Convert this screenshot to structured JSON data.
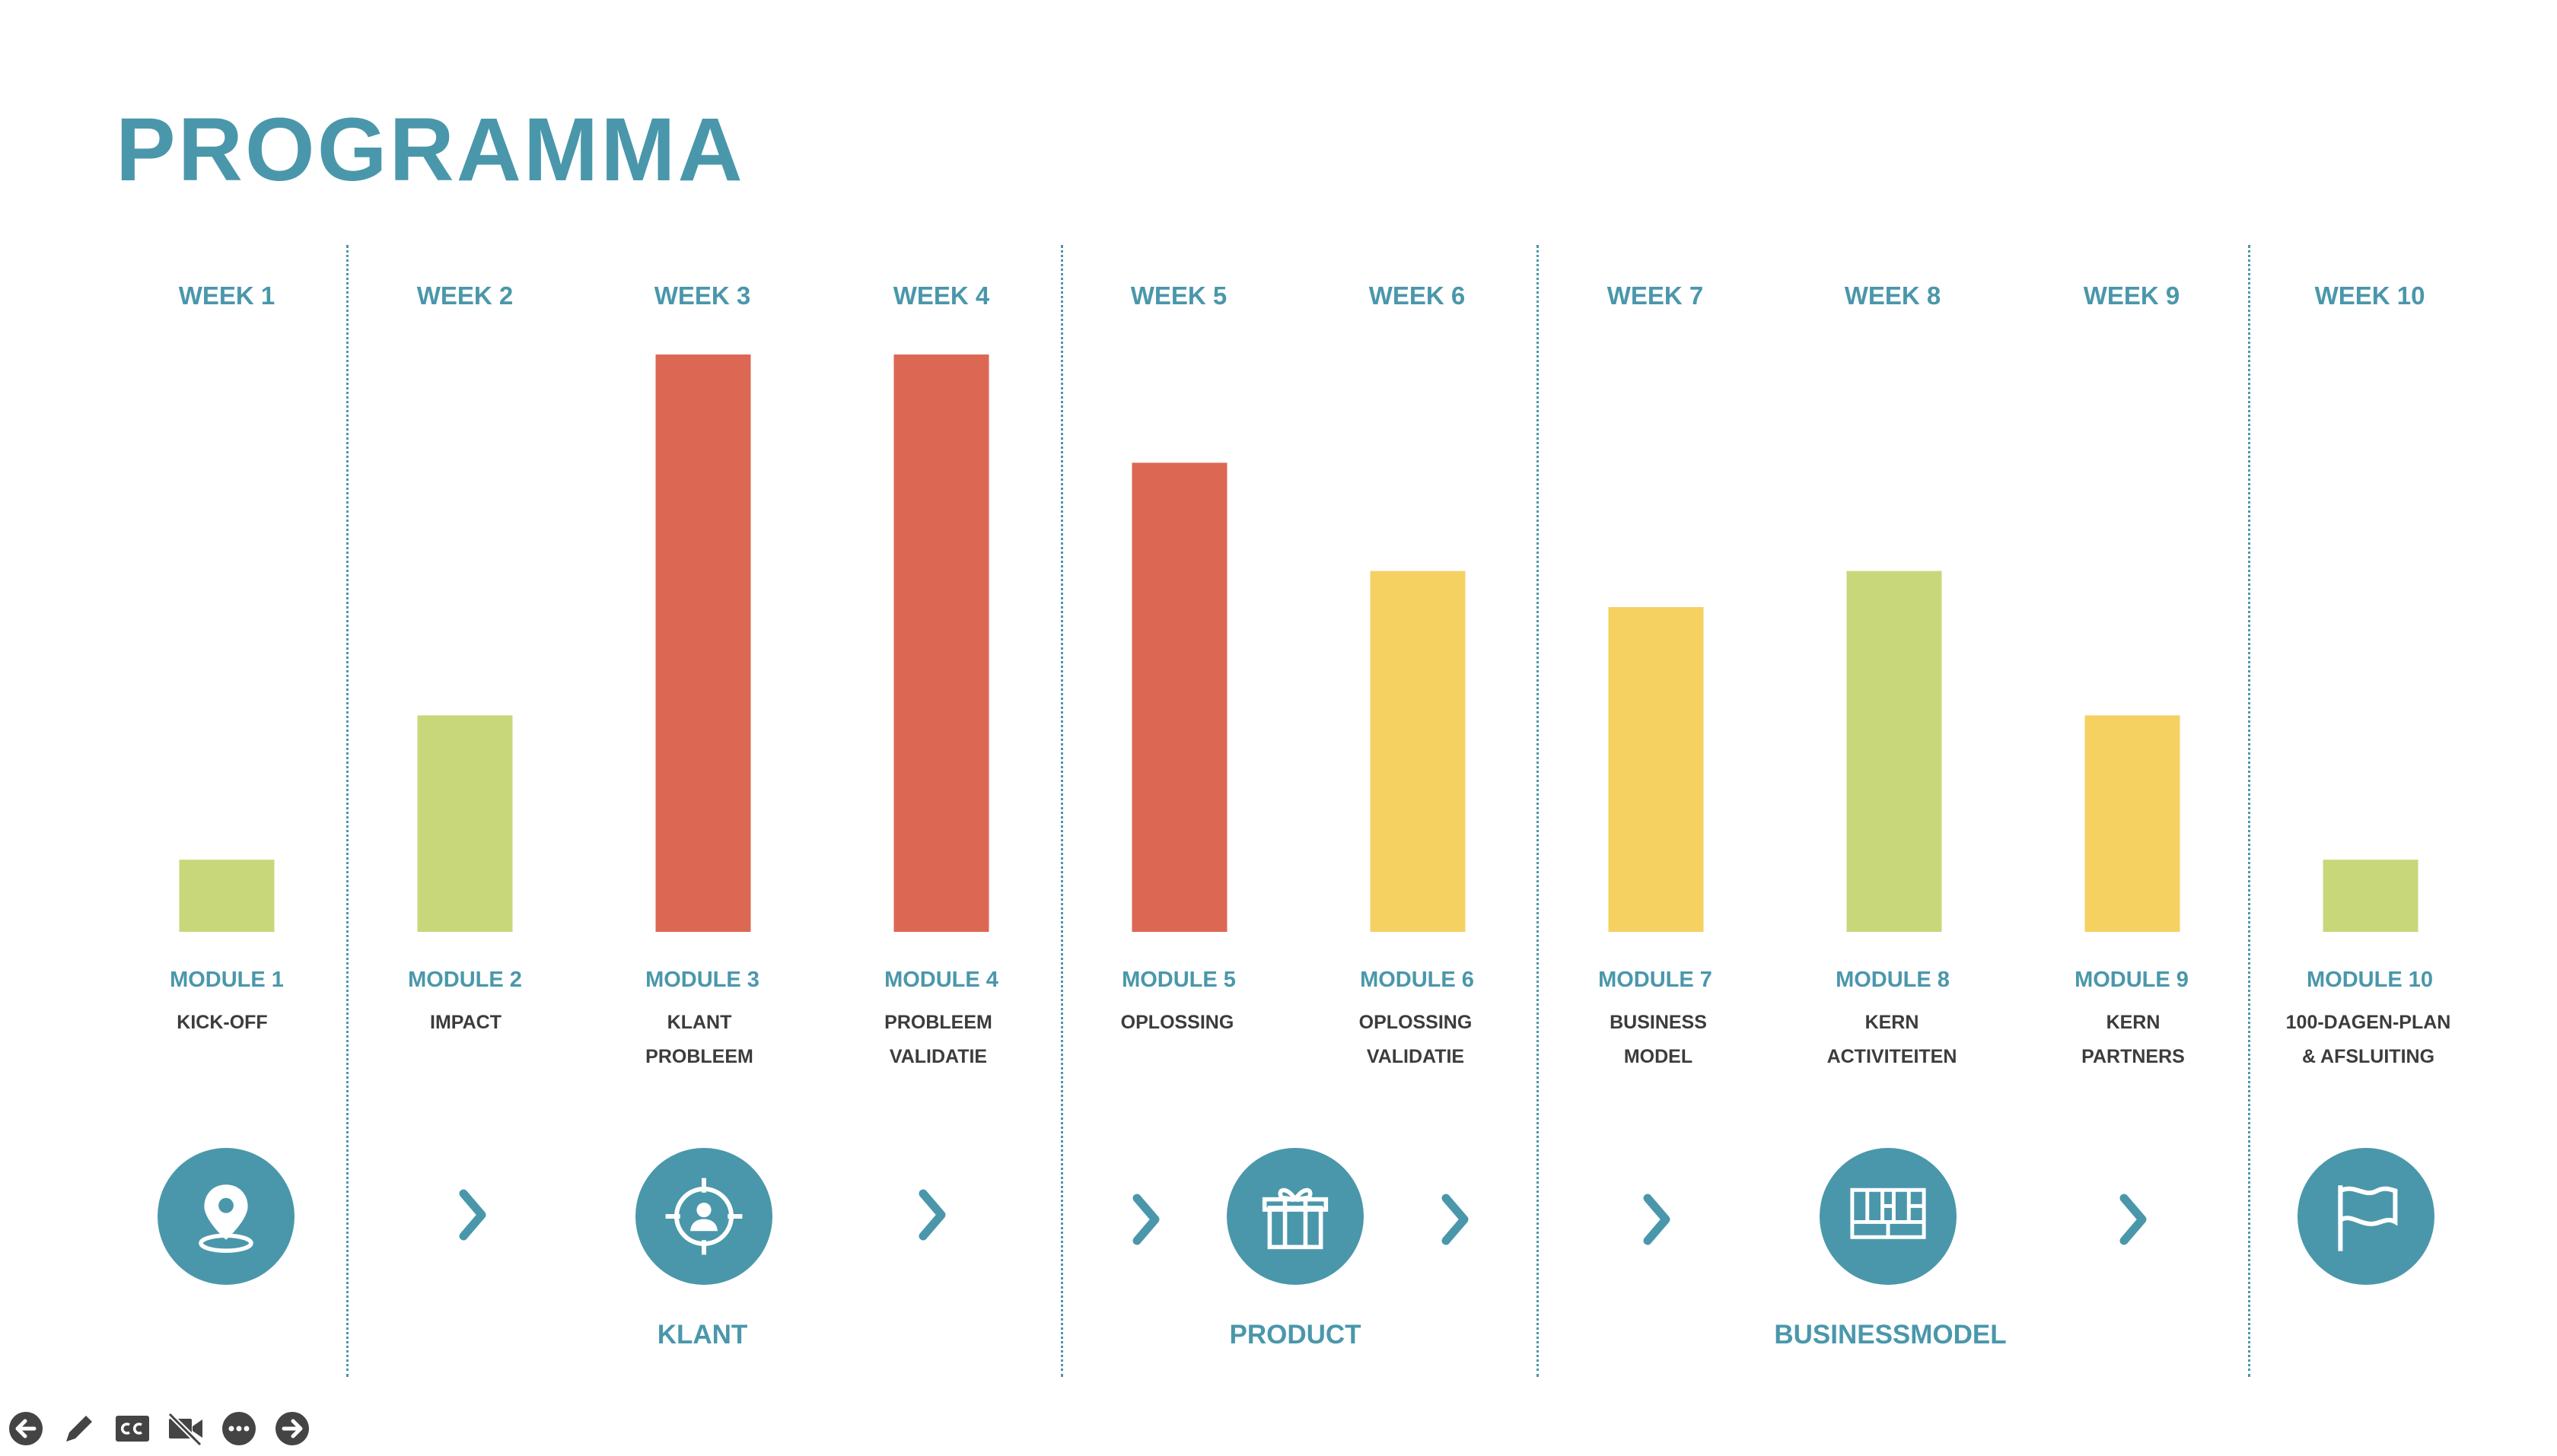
{
  "page": {
    "title": "PROGRAMMA"
  },
  "colors": {
    "accent": "#4a97ab",
    "red": "#dc6854",
    "yellow": "#f5d162",
    "green": "#c9d77b",
    "dark": "#444444"
  },
  "chart_data": {
    "type": "bar",
    "categories": [
      "WEEK 1",
      "WEEK 2",
      "WEEK 3",
      "WEEK 4",
      "WEEK 5",
      "WEEK 6",
      "WEEK 7",
      "WEEK 8",
      "WEEK 9",
      "WEEK 10"
    ],
    "values": [
      1,
      3,
      8,
      8,
      6.5,
      5,
      4.5,
      5,
      3,
      1
    ],
    "bar_colors": [
      "green",
      "green",
      "red",
      "red",
      "red",
      "yellow",
      "yellow",
      "green",
      "yellow",
      "green"
    ],
    "ylim": [
      0,
      8
    ],
    "grid": false,
    "xlabel": "",
    "ylabel": ""
  },
  "modules": [
    {
      "title": "MODULE 1",
      "sub": [
        "KICK-OFF"
      ]
    },
    {
      "title": "MODULE 2",
      "sub": [
        "IMPACT"
      ]
    },
    {
      "title": "MODULE 3",
      "sub": [
        "KLANT",
        "PROBLEEM"
      ]
    },
    {
      "title": "MODULE 4",
      "sub": [
        "PROBLEEM",
        "VALIDATIE"
      ]
    },
    {
      "title": "MODULE 5",
      "sub": [
        "OPLOSSING"
      ]
    },
    {
      "title": "MODULE 6",
      "sub": [
        "OPLOSSING",
        "VALIDATIE"
      ]
    },
    {
      "title": "MODULE 7",
      "sub": [
        "BUSINESS",
        "MODEL"
      ]
    },
    {
      "title": "MODULE 8",
      "sub": [
        "KERN",
        "ACTIVITEITEN"
      ]
    },
    {
      "title": "MODULE 9",
      "sub": [
        "KERN",
        "PARTNERS"
      ]
    },
    {
      "title": "MODULE 10",
      "sub": [
        "100-DAGEN-PLAN",
        "& AFSLUITING"
      ]
    }
  ],
  "phases": [
    "KLANT",
    "PRODUCT",
    "BUSINESSMODEL"
  ],
  "icons": [
    "location-pin-icon",
    "target-person-icon",
    "gift-icon",
    "business-model-canvas-icon",
    "flag-icon"
  ],
  "controls": [
    "previous-icon",
    "pen-icon",
    "closed-captions-icon",
    "video-off-icon",
    "more-icon",
    "next-icon"
  ]
}
